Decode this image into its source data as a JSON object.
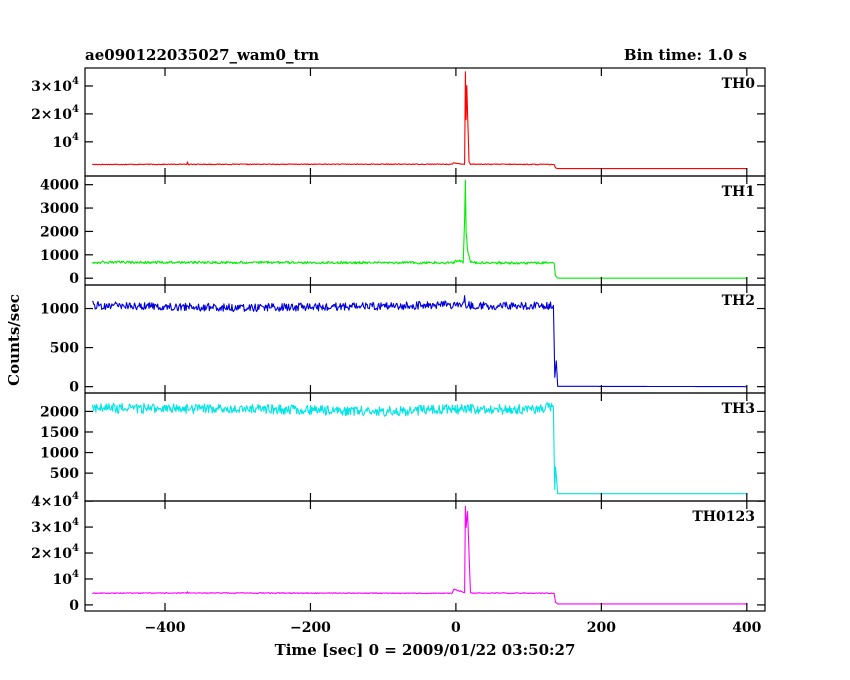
{
  "header": {
    "left": "ae090122035027_wam0_trn",
    "right": "Bin time: 1.0 s"
  },
  "chart_data": {
    "type": "line",
    "xlabel": "Time [sec] 0 = 2009/01/22 03:50:27",
    "ylabel": "Counts/sec",
    "xlim": [
      -510,
      425
    ],
    "xticks": [
      -400,
      -200,
      0,
      200,
      400
    ],
    "xtick_labels": [
      "−400",
      "−200",
      "0",
      "200",
      "400"
    ],
    "panels": [
      {
        "name": "TH0",
        "color": "#ff0000",
        "ylim": [
          -800,
          35000
        ],
        "yticks": [
          {
            "v": 10000,
            "t": "10^4"
          },
          {
            "v": 20000,
            "t": "2×10^4"
          },
          {
            "v": 30000,
            "t": "3×10^4"
          }
        ],
        "series": [
          {
            "x": [
              -500,
              -370,
              -369,
              -368,
              -5,
              -3,
              12,
              13,
              14,
              15,
              18,
              20,
              135,
              137,
              140,
              400
            ],
            "y": [
              1900,
              1950,
              2900,
              1950,
              2000,
              2400,
              2000,
              35000,
              18000,
              30000,
              3000,
              2000,
              1900,
              700,
              400,
              400
            ]
          }
        ]
      },
      {
        "name": "TH1",
        "color": "#00ee00",
        "ylim": [
          -120,
          4200
        ],
        "yticks": [
          {
            "v": 0,
            "t": "0"
          },
          {
            "v": 1000,
            "t": "1000"
          },
          {
            "v": 2000,
            "t": "2000"
          },
          {
            "v": 3000,
            "t": "3000"
          },
          {
            "v": 4000,
            "t": "4000"
          }
        ],
        "series": [
          {
            "x": [
              -500,
              -3,
              0,
              10,
              12,
              13,
              14,
              16,
              20,
              25,
              135,
              137,
              140,
              400
            ],
            "y": [
              680,
              660,
              750,
              700,
              2500,
              4200,
              2000,
              1200,
              720,
              660,
              650,
              100,
              0,
              0
            ]
          }
        ]
      },
      {
        "name": "TH2",
        "color": "#0000dd",
        "ylim": [
          -30,
          1250
        ],
        "yticks": [
          {
            "v": 0,
            "t": "0"
          },
          {
            "v": 500,
            "t": "500"
          },
          {
            "v": 1000,
            "t": "1000"
          }
        ],
        "series": [
          {
            "x": [
              -500,
              -300,
              -100,
              0,
              10,
              12,
              14,
              100,
              134,
              135,
              136,
              138,
              140,
              400
            ],
            "y": [
              1040,
              1010,
              1030,
              1050,
              1060,
              1150,
              1040,
              1030,
              1040,
              600,
              120,
              330,
              5,
              0
            ]
          }
        ]
      },
      {
        "name": "TH3",
        "color": "#00e5e5",
        "ylim": [
          -80,
          2350
        ],
        "yticks": [
          {
            "v": 500,
            "t": "500"
          },
          {
            "v": 1000,
            "t": "1000"
          },
          {
            "v": 1500,
            "t": "1500"
          },
          {
            "v": 2000,
            "t": "2000"
          }
        ],
        "series": [
          {
            "x": [
              -500,
              -300,
              -100,
              0,
              100,
              134,
              135,
              136,
              137,
              140,
              400
            ],
            "y": [
              2080,
              2060,
              2000,
              2050,
              2050,
              2100,
              1000,
              100,
              650,
              0,
              0
            ]
          }
        ]
      },
      {
        "name": "TH0123",
        "color": "#ff00ff",
        "ylim": [
          -800,
          38500
        ],
        "yticks": [
          {
            "v": 0,
            "t": "0"
          },
          {
            "v": 10000,
            "t": "10^4"
          },
          {
            "v": 20000,
            "t": "2×10^4"
          },
          {
            "v": 30000,
            "t": "3×10^4"
          },
          {
            "v": 40000,
            "t": "4×10^4"
          }
        ],
        "series": [
          {
            "x": [
              -500,
              -370,
              -369,
              -368,
              -5,
              -3,
              12,
              13,
              14,
              16,
              20,
              135,
              137,
              140,
              400
            ],
            "y": [
              4500,
              4600,
              5200,
              4600,
              4500,
              6000,
              4800,
              38000,
              30000,
              36000,
              4600,
              4500,
              1000,
              400,
              400
            ]
          }
        ]
      }
    ]
  }
}
